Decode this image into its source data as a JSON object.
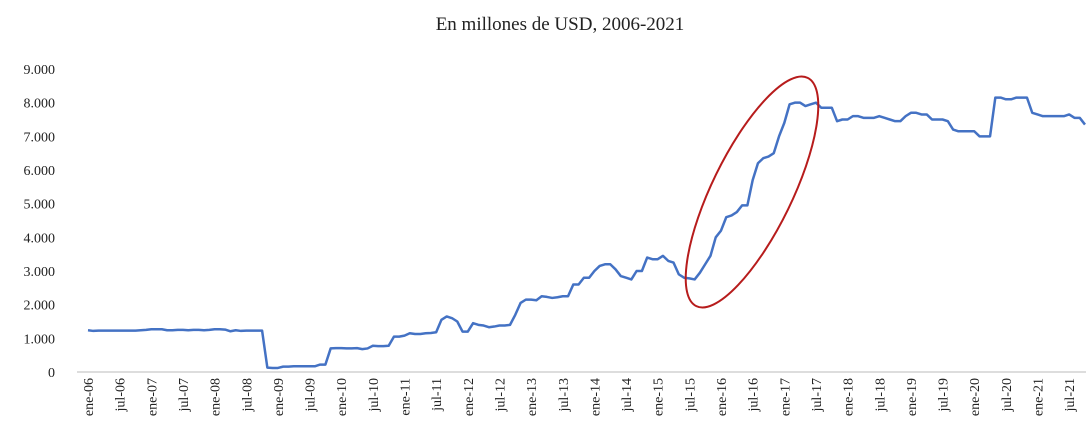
{
  "chart_data": {
    "type": "line",
    "title": "En millones de USD, 2006-2021",
    "color": "#4472c4",
    "ylim": [
      0,
      9000
    ],
    "yticks": [
      0,
      {
        "value": 1000,
        "label": "1.000"
      },
      {
        "value": 2000,
        "label": "2.000"
      },
      {
        "value": 3000,
        "label": "3.000"
      },
      {
        "value": 4000,
        "label": "4.000"
      },
      {
        "value": 5000,
        "label": "5.000"
      },
      {
        "value": 6000,
        "label": "6.000"
      },
      {
        "value": 7000,
        "label": "7.000"
      },
      {
        "value": 8000,
        "label": "8.000"
      },
      {
        "value": 9000,
        "label": "9.000"
      }
    ],
    "categories": [
      "ene-06",
      null,
      null,
      null,
      null,
      null,
      "jul-06",
      null,
      null,
      null,
      null,
      null,
      "ene-07",
      null,
      null,
      null,
      null,
      null,
      "jul-07",
      null,
      null,
      null,
      null,
      null,
      "ene-08",
      null,
      null,
      null,
      null,
      null,
      "jul-08",
      null,
      null,
      null,
      null,
      null,
      "ene-09",
      null,
      null,
      null,
      null,
      null,
      "jul-09",
      null,
      null,
      null,
      null,
      null,
      "ene-10",
      null,
      null,
      null,
      null,
      null,
      "jul-10",
      null,
      null,
      null,
      null,
      null,
      "ene-11",
      null,
      null,
      null,
      null,
      null,
      "jul-11",
      null,
      null,
      null,
      null,
      null,
      "ene-12",
      null,
      null,
      null,
      null,
      null,
      "jul-12",
      null,
      null,
      null,
      null,
      null,
      "ene-13",
      null,
      null,
      null,
      null,
      null,
      "jul-13",
      null,
      null,
      null,
      null,
      null,
      "ene-14",
      null,
      null,
      null,
      null,
      null,
      "jul-14",
      null,
      null,
      null,
      null,
      null,
      "ene-15",
      null,
      null,
      null,
      null,
      null,
      "jul-15",
      null,
      null,
      null,
      null,
      null,
      "ene-16",
      null,
      null,
      null,
      null,
      null,
      "jul-16",
      null,
      null,
      null,
      null,
      null,
      "ene-17",
      null,
      null,
      null,
      null,
      null,
      "jul-17",
      null,
      null,
      null,
      null,
      null,
      "ene-18",
      null,
      null,
      null,
      null,
      null,
      "jul-18",
      null,
      null,
      null,
      null,
      null,
      "ene-19",
      null,
      null,
      null,
      null,
      null,
      "jul-19",
      null,
      null,
      null,
      null,
      null,
      "ene-20",
      null,
      null,
      null,
      null,
      null,
      "jul-20",
      null,
      null,
      null,
      null,
      null,
      "ene-21",
      null,
      null,
      null,
      null,
      null,
      "jul-21",
      null,
      null,
      null
    ],
    "values": [
      1240,
      1220,
      1230,
      1230,
      1230,
      1230,
      1230,
      1230,
      1230,
      1230,
      1240,
      1250,
      1270,
      1270,
      1270,
      1240,
      1240,
      1250,
      1250,
      1240,
      1250,
      1250,
      1240,
      1250,
      1270,
      1270,
      1260,
      1210,
      1240,
      1220,
      1230,
      1230,
      1230,
      1230,
      130,
      120,
      120,
      160,
      160,
      170,
      170,
      170,
      170,
      170,
      220,
      220,
      700,
      710,
      710,
      700,
      700,
      710,
      680,
      700,
      780,
      770,
      770,
      780,
      1050,
      1050,
      1080,
      1150,
      1130,
      1130,
      1150,
      1160,
      1180,
      1550,
      1650,
      1600,
      1500,
      1200,
      1200,
      1450,
      1400,
      1380,
      1330,
      1350,
      1380,
      1380,
      1400,
      1700,
      2050,
      2150,
      2150,
      2130,
      2250,
      2230,
      2200,
      2220,
      2250,
      2250,
      2600,
      2600,
      2800,
      2800,
      3000,
      3150,
      3200,
      3200,
      3050,
      2850,
      2800,
      2750,
      3000,
      3000,
      3400,
      3350,
      3350,
      3450,
      3300,
      3250,
      2900,
      2800,
      2780,
      2750,
      2950,
      3200,
      3450,
      4000,
      4200,
      4600,
      4650,
      4750,
      4950,
      4950,
      5700,
      6200,
      6350,
      6400,
      6500,
      7000,
      7400,
      7950,
      8000,
      8000,
      7900,
      7950,
      8000,
      7850,
      7850,
      7850,
      7450,
      7500,
      7500,
      7600,
      7600,
      7550,
      7550,
      7550,
      7600,
      7550,
      7500,
      7450,
      7450,
      7600,
      7700,
      7700,
      7650,
      7650,
      7500,
      7500,
      7500,
      7450,
      7200,
      7150,
      7150,
      7150,
      7150,
      7000,
      7000,
      7000,
      8150,
      8150,
      8100,
      8100,
      8150,
      8150,
      8150,
      7700,
      7650,
      7600,
      7600,
      7600,
      7600,
      7600,
      7650,
      7550,
      7550,
      7350
    ]
  }
}
